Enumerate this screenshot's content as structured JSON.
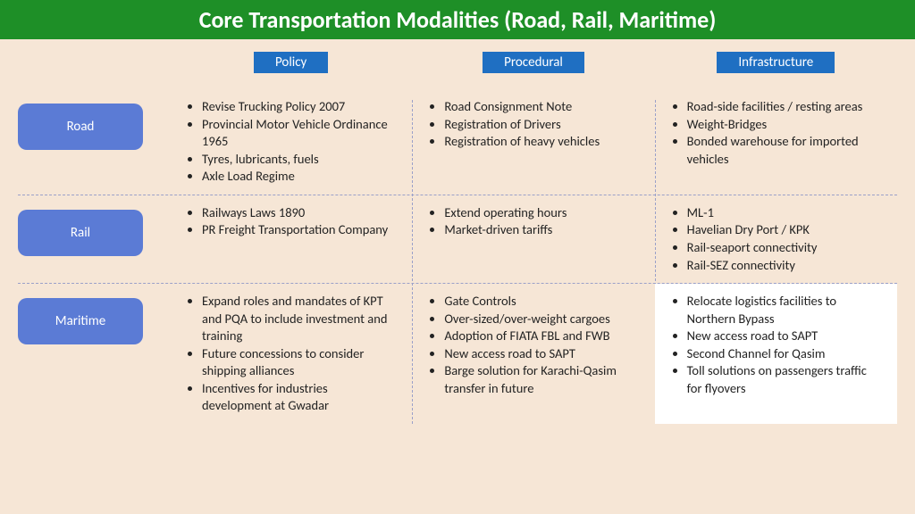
{
  "colors": {
    "title_bg": "#1e8f27",
    "title_fg": "#ffffff",
    "page_bg": "#f6e6d6",
    "col_header_bg": "#1f6fc2",
    "row_label_bg": "#5b7bd5",
    "text": "#222222",
    "dash": "#9aa0c9"
  },
  "layout": {
    "title_fontsize": 26,
    "col_header_fontsize": 15,
    "row_label_fontsize": 15,
    "cell_fontsize": 14.5,
    "row_label_radius": 10
  },
  "title": "Core Transportation Modalities (Road, Rail, Maritime)",
  "columns": [
    {
      "label": "Policy"
    },
    {
      "label": "Procedural"
    },
    {
      "label": "Infrastructure"
    }
  ],
  "rows": [
    {
      "label": "Road",
      "cells": [
        {
          "items": [
            "Revise Trucking Policy 2007",
            "Provincial Motor Vehicle Ordinance 1965",
            "Tyres, lubricants, fuels",
            "Axle Load Regime"
          ]
        },
        {
          "items": [
            "Road Consignment Note",
            "Registration of Drivers",
            "Registration of heavy vehicles"
          ]
        },
        {
          "items": [
            "Road-side facilities / resting areas",
            "Weight-Bridges",
            "Bonded warehouse for imported vehicles"
          ]
        }
      ]
    },
    {
      "label": "Rail",
      "cells": [
        {
          "items": [
            "Railways Laws 1890",
            "PR Freight Transportation Company"
          ]
        },
        {
          "items": [
            "Extend operating hours",
            "Market-driven tariffs"
          ]
        },
        {
          "items": [
            "ML-1",
            "Havelian Dry Port / KPK",
            "Rail-seaport connectivity",
            "Rail-SEZ connectivity"
          ]
        }
      ]
    },
    {
      "label": "Maritime",
      "cells": [
        {
          "items": [
            "Expand roles and mandates of KPT and PQA to include investment and training",
            "Future concessions to consider shipping alliances",
            "Incentives for industries development at Gwadar"
          ]
        },
        {
          "items": [
            "Gate Controls",
            "Over-sized/over-weight cargoes",
            "Adoption of FIATA  FBL and FWB",
            "New access road to SAPT",
            "Barge solution for Karachi-Qasim transfer in future"
          ]
        },
        {
          "highlight": true,
          "items": [
            "Relocate logistics facilities to Northern Bypass",
            "New access road to SAPT",
            "Second Channel for Qasim",
            "Toll solutions on passengers traffic for flyovers"
          ]
        }
      ]
    }
  ]
}
